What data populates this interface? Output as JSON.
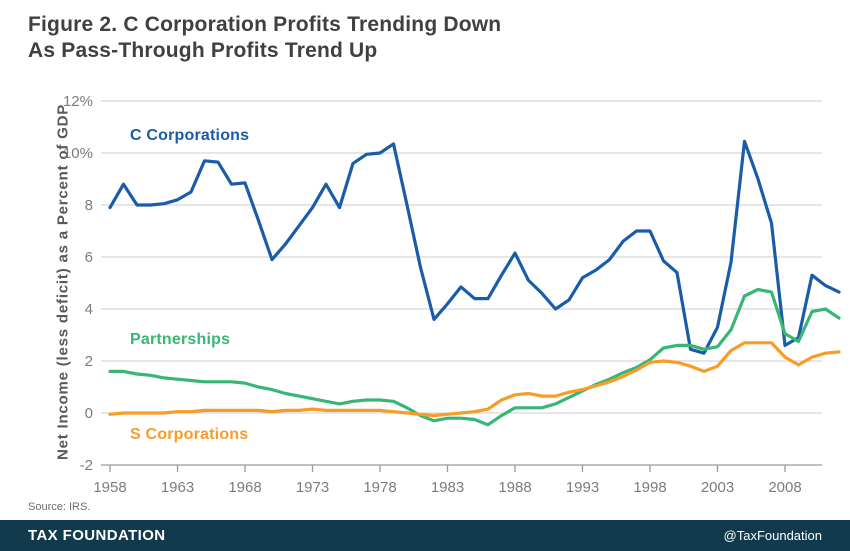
{
  "title": {
    "line1": "Figure 2. C Corporation Profits Trending Down",
    "line2": "As Pass-Through Profits Trend Up"
  },
  "source": "Source: IRS.",
  "footer": {
    "brand": "TAX FOUNDATION",
    "handle": "@TaxFoundation"
  },
  "colors": {
    "title_text": "#3e4042",
    "axis_title_text": "#58595b",
    "tick_text": "#7c7c7e",
    "gridline": "#cccccc",
    "axis": "#9b9b9b",
    "source_text": "#6d6e71",
    "footer_bar": "#113a4c",
    "footer_text": "#ffffff",
    "c_corporations": "#1a5ca8",
    "partnerships": "#38b673",
    "s_corporations": "#f89c27"
  },
  "chart_data": {
    "type": "line",
    "title": "Figure 2. C Corporation Profits Trending Down As Pass-Through Profits Trend Up",
    "xlabel": "",
    "ylabel": "Net Income (less deficit) as a Percent of GDP",
    "ylim": [
      -2,
      12
    ],
    "grid": "horizontal",
    "legend_position": "inline-labels",
    "y_ticks": [
      {
        "value": 12,
        "label": "12%"
      },
      {
        "value": 10,
        "label": "10%"
      },
      {
        "value": 8,
        "label": "8"
      },
      {
        "value": 6,
        "label": "6"
      },
      {
        "value": 4,
        "label": "4"
      },
      {
        "value": 2,
        "label": "2"
      },
      {
        "value": 0,
        "label": "0"
      },
      {
        "value": -2,
        "label": "-2"
      }
    ],
    "x_ticks": [
      1958,
      1963,
      1968,
      1973,
      1978,
      1983,
      1988,
      1993,
      1998,
      2003,
      2008
    ],
    "x": [
      1958,
      1959,
      1960,
      1961,
      1962,
      1963,
      1964,
      1965,
      1966,
      1967,
      1968,
      1969,
      1970,
      1971,
      1972,
      1973,
      1974,
      1975,
      1976,
      1977,
      1978,
      1979,
      1980,
      1981,
      1982,
      1983,
      1984,
      1985,
      1986,
      1987,
      1988,
      1989,
      1990,
      1991,
      1992,
      1993,
      1994,
      1995,
      1996,
      1997,
      1998,
      1999,
      2000,
      2001,
      2002,
      2003,
      2004,
      2005,
      2006,
      2007,
      2008,
      2009,
      2010,
      2011,
      2012
    ],
    "series": [
      {
        "name": "C Corporations",
        "color": "#1a5ca8",
        "values": [
          7.9,
          8.8,
          8.0,
          8.0,
          8.05,
          8.2,
          8.5,
          9.7,
          9.65,
          8.8,
          8.85,
          7.4,
          5.9,
          6.5,
          7.2,
          7.9,
          8.8,
          7.9,
          9.6,
          9.95,
          10.0,
          10.35,
          8.0,
          5.6,
          3.6,
          4.2,
          4.85,
          4.4,
          4.4,
          5.3,
          6.15,
          5.1,
          4.6,
          4.0,
          4.35,
          5.2,
          5.5,
          5.9,
          6.6,
          7.0,
          7.0,
          5.85,
          5.4,
          2.45,
          2.3,
          3.3,
          5.8,
          10.45,
          9.0,
          7.3,
          2.6,
          2.9,
          5.3,
          4.9,
          4.65
        ]
      },
      {
        "name": "Partnerships",
        "color": "#38b673",
        "values": [
          1.6,
          1.6,
          1.5,
          1.45,
          1.35,
          1.3,
          1.25,
          1.2,
          1.2,
          1.2,
          1.15,
          1.0,
          0.9,
          0.75,
          0.65,
          0.55,
          0.45,
          0.35,
          0.45,
          0.5,
          0.5,
          0.45,
          0.2,
          -0.1,
          -0.3,
          -0.2,
          -0.2,
          -0.25,
          -0.45,
          -0.1,
          0.2,
          0.2,
          0.2,
          0.35,
          0.6,
          0.85,
          1.1,
          1.3,
          1.55,
          1.75,
          2.05,
          2.5,
          2.6,
          2.6,
          2.45,
          2.55,
          3.2,
          4.5,
          4.75,
          4.65,
          3.05,
          2.75,
          3.9,
          4.0,
          3.65
        ]
      },
      {
        "name": "S Corporations",
        "color": "#f89c27",
        "values": [
          -0.05,
          0.0,
          0.0,
          0.0,
          0.0,
          0.05,
          0.05,
          0.1,
          0.1,
          0.1,
          0.1,
          0.1,
          0.05,
          0.1,
          0.1,
          0.15,
          0.1,
          0.1,
          0.1,
          0.1,
          0.1,
          0.05,
          0.0,
          -0.05,
          -0.1,
          -0.05,
          0.0,
          0.05,
          0.15,
          0.5,
          0.7,
          0.75,
          0.65,
          0.65,
          0.8,
          0.9,
          1.05,
          1.2,
          1.4,
          1.65,
          1.95,
          2.0,
          1.95,
          1.8,
          1.6,
          1.8,
          2.4,
          2.7,
          2.7,
          2.7,
          2.15,
          1.85,
          2.15,
          2.3,
          2.35
        ]
      }
    ]
  }
}
